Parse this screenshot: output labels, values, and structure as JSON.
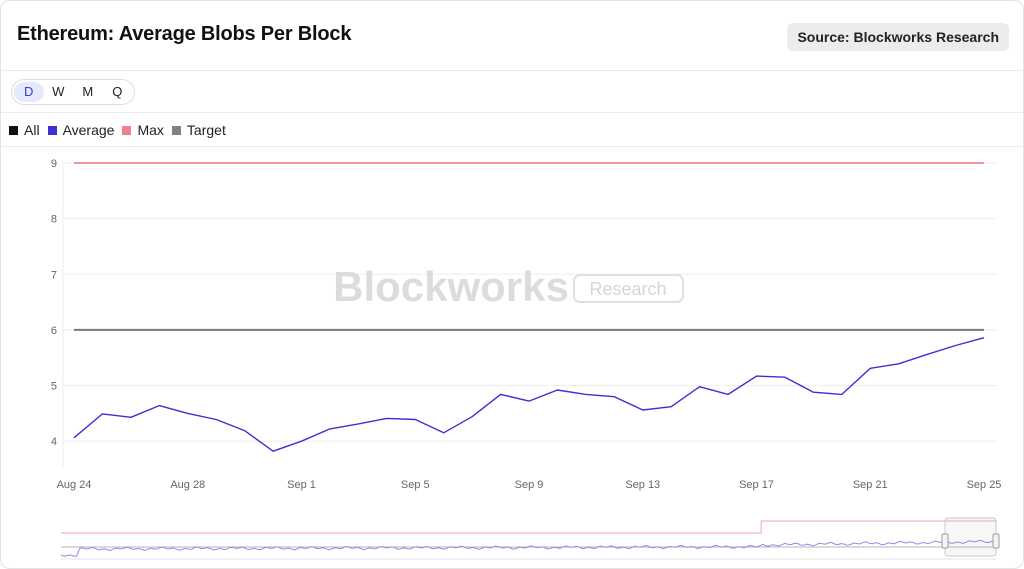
{
  "header": {
    "title": "Ethereum: Average Blobs Per Block",
    "source": "Source: Blockworks Research"
  },
  "range": {
    "options": [
      "D",
      "W",
      "M",
      "Q"
    ],
    "active": "D"
  },
  "legend": {
    "items": [
      {
        "label": "All",
        "color": "#111111"
      },
      {
        "label": "Average",
        "color": "#3f2fd2"
      },
      {
        "label": "Max",
        "color": "#f07f8f"
      },
      {
        "label": "Target",
        "color": "#80808a"
      }
    ]
  },
  "watermark": {
    "brand": "Blockworks",
    "sub": "Research"
  },
  "colors": {
    "average": "#3f2fd2",
    "max": "#ef6f80",
    "target": "#77777f",
    "grid": "#eeeeef",
    "axis_text": "#666666",
    "navigator_average": "#8f8be8",
    "navigator_max": "#f3a6b0"
  },
  "chart_data": {
    "type": "line",
    "title": "Ethereum: Average Blobs Per Block",
    "x_ticks": [
      "Aug 24",
      "Aug 28",
      "Sep 1",
      "Sep 5",
      "Sep 9",
      "Sep 13",
      "Sep 17",
      "Sep 21",
      "Sep 25"
    ],
    "ylim": [
      3.5,
      9
    ],
    "y_ticks": [
      4,
      5,
      6,
      7,
      8,
      9
    ],
    "grid": true,
    "legend_position": "top-left",
    "x": [
      "Aug 24",
      "Aug 25",
      "Aug 26",
      "Aug 27",
      "Aug 28",
      "Aug 29",
      "Aug 30",
      "Aug 31",
      "Sep 1",
      "Sep 2",
      "Sep 3",
      "Sep 4",
      "Sep 5",
      "Sep 6",
      "Sep 7",
      "Sep 8",
      "Sep 9",
      "Sep 10",
      "Sep 11",
      "Sep 12",
      "Sep 13",
      "Sep 14",
      "Sep 15",
      "Sep 16",
      "Sep 17",
      "Sep 18",
      "Sep 19",
      "Sep 20",
      "Sep 21",
      "Sep 22",
      "Sep 23",
      "Sep 24",
      "Sep 25"
    ],
    "series": [
      {
        "name": "Average",
        "values": [
          4.06,
          4.49,
          4.43,
          4.64,
          4.5,
          4.39,
          4.19,
          3.82,
          4.0,
          4.22,
          4.31,
          4.41,
          4.39,
          4.15,
          4.44,
          4.84,
          4.72,
          4.92,
          4.84,
          4.8,
          4.56,
          4.62,
          4.98,
          4.84,
          5.17,
          5.15,
          4.88,
          4.84,
          5.31,
          5.39,
          5.56,
          5.72,
          5.86
        ]
      },
      {
        "name": "Max",
        "values": [
          9,
          9,
          9,
          9,
          9,
          9,
          9,
          9,
          9,
          9,
          9,
          9,
          9,
          9,
          9,
          9,
          9,
          9,
          9,
          9,
          9,
          9,
          9,
          9,
          9,
          9,
          9,
          9,
          9,
          9,
          9,
          9,
          9
        ]
      },
      {
        "name": "Target",
        "values": [
          6,
          6,
          6,
          6,
          6,
          6,
          6,
          6,
          6,
          6,
          6,
          6,
          6,
          6,
          6,
          6,
          6,
          6,
          6,
          6,
          6,
          6,
          6,
          6,
          6,
          6,
          6,
          6,
          6,
          6,
          6,
          6,
          6
        ]
      }
    ]
  }
}
